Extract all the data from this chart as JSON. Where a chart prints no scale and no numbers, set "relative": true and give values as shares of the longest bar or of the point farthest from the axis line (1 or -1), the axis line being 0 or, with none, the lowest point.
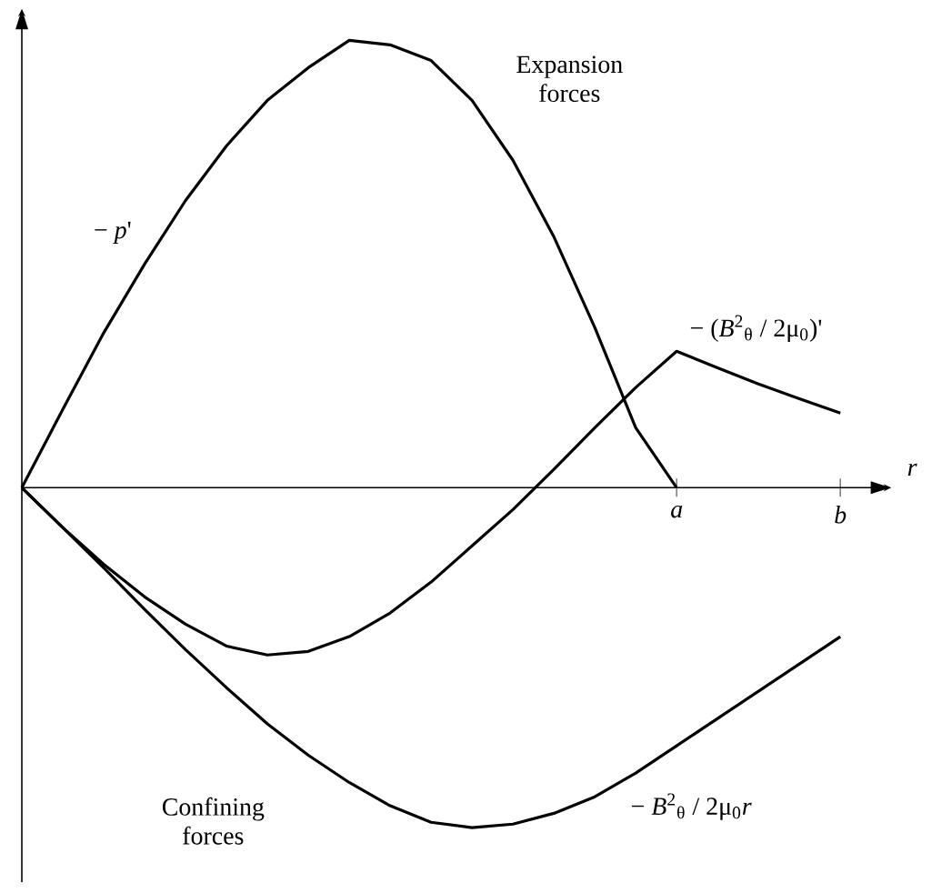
{
  "chart_data": {
    "type": "line",
    "relative": true,
    "xlabel": "*r*",
    "tick_labels": "x",
    "marker": "none",
    "line_style": "solid",
    "categories": [
      null,
      null,
      null,
      null,
      null,
      null,
      null,
      null,
      null,
      null,
      null,
      null,
      null,
      null,
      null,
      null,
      "*a*",
      null,
      null,
      null,
      "*b*"
    ],
    "annotations": [
      "Expansion forces",
      "Confining forces"
    ],
    "series": [
      {
        "name": "− *p*'",
        "color": "#000000",
        "values": [
          0,
          0.175,
          0.346,
          0.5,
          0.642,
          0.764,
          0.866,
          0.939,
          1,
          0.99,
          0.955,
          0.866,
          0.732,
          0.561,
          0.358,
          0.134,
          0,
          null,
          null,
          null,
          null
        ]
      },
      {
        "name": "− (*B*$^{2}$$_{θ}$ / 2μ$_{0}$)'",
        "color": "#000000",
        "values": [
          0,
          -0.089,
          -0.171,
          -0.244,
          -0.305,
          -0.354,
          -0.374,
          -0.366,
          -0.333,
          -0.28,
          -0.211,
          -0.13,
          -0.049,
          0.041,
          0.134,
          0.224,
          0.305,
          0.268,
          0.232,
          0.199,
          0.167
        ]
      },
      {
        "name": "− *B*$^{2}$$_{θ}$ / 2μ$_{0}$*r*",
        "color": "#000000",
        "values": [
          0,
          -0.089,
          -0.179,
          -0.272,
          -0.362,
          -0.447,
          -0.528,
          -0.598,
          -0.659,
          -0.711,
          -0.748,
          -0.76,
          -0.752,
          -0.728,
          -0.691,
          -0.638,
          -0.577,
          -0.516,
          -0.455,
          -0.394,
          -0.333
        ]
      }
    ]
  }
}
